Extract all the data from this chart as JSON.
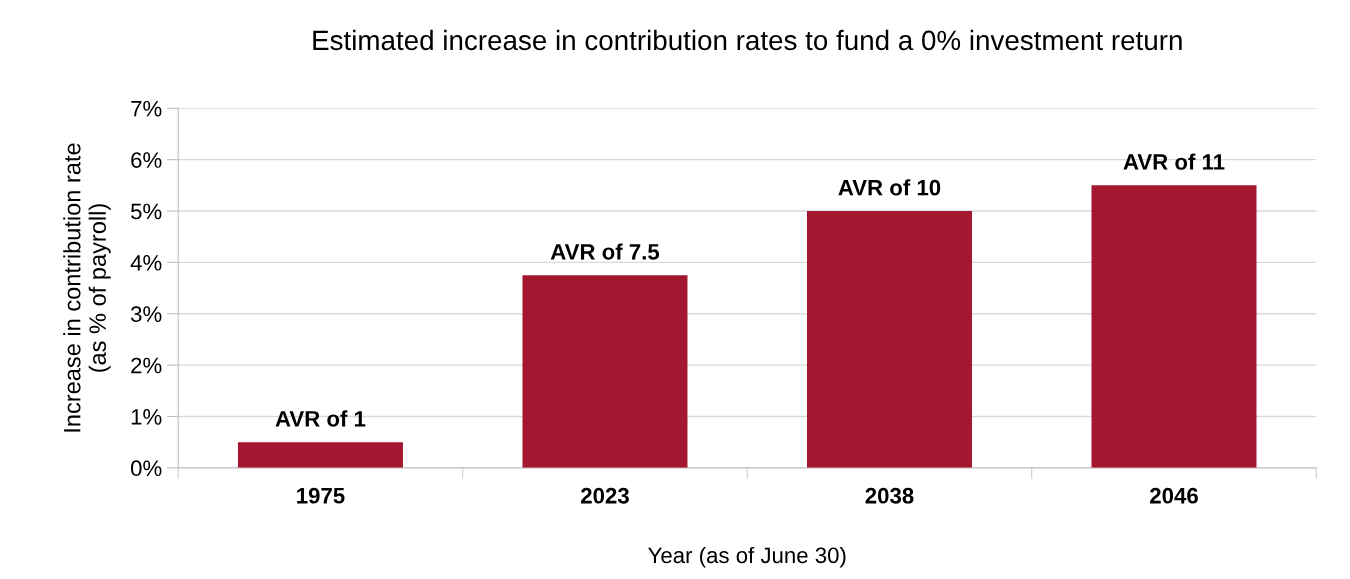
{
  "chart_data": {
    "type": "bar",
    "title": "Estimated increase in contribution rates to fund a 0% investment return",
    "xlabel": "Year (as of June 30)",
    "ylabel": "Increase in contribution rate\n(as % of payroll)",
    "categories": [
      "1975",
      "2023",
      "2038",
      "2046"
    ],
    "values": [
      0.5,
      3.75,
      5.0,
      5.5
    ],
    "value_labels": [
      "AVR of 1",
      "AVR of 7.5",
      "AVR of 10",
      "AVR of 11"
    ],
    "color": "#a31830",
    "ylim": [
      0,
      7
    ],
    "yticks": [
      {
        "value": 0,
        "label": "0%"
      },
      {
        "value": 1,
        "label": "1%"
      },
      {
        "value": 2,
        "label": "2%"
      },
      {
        "value": 3,
        "label": "3%"
      },
      {
        "value": 4,
        "label": "4%"
      },
      {
        "value": 5,
        "label": "5%"
      },
      {
        "value": 6,
        "label": "6%"
      },
      {
        "value": 7,
        "label": "7%"
      }
    ],
    "grid": "y",
    "legend": false
  }
}
